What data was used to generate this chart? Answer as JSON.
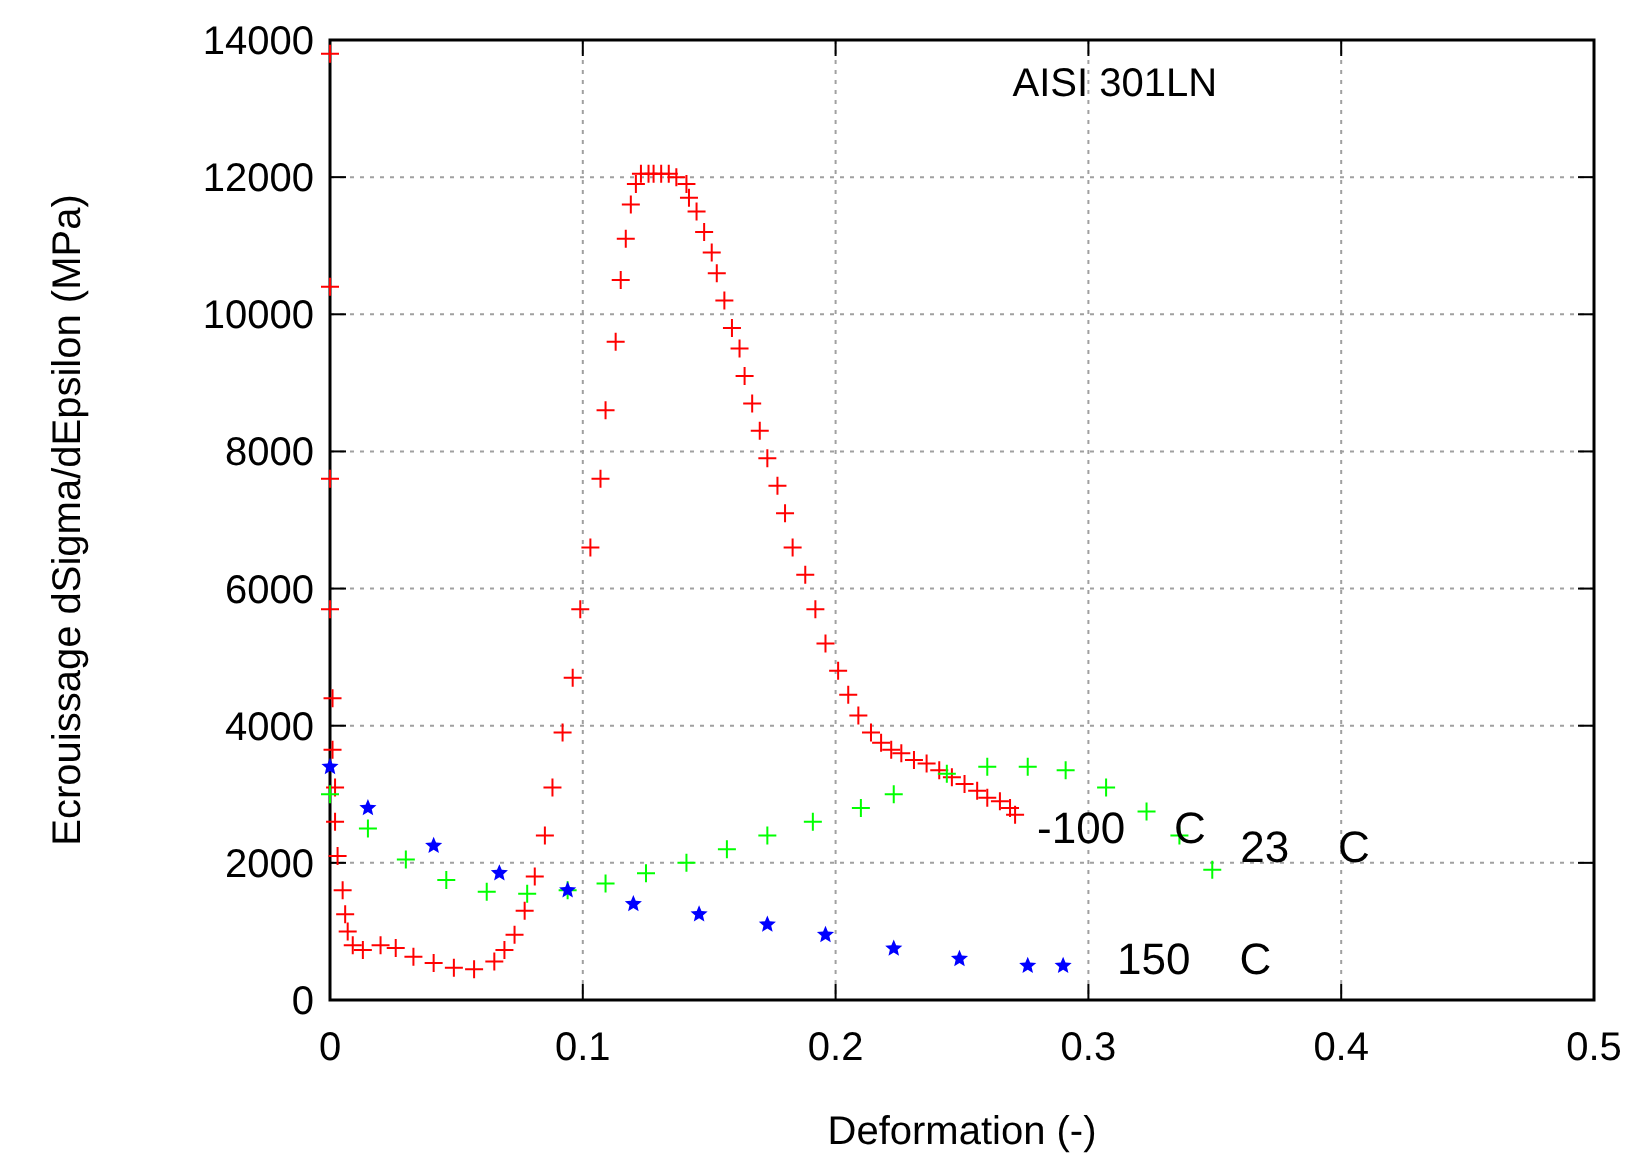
{
  "chart_data": {
    "type": "scatter",
    "title": "AISI 301LN",
    "xlabel": "Deformation (-)",
    "ylabel": "Ecrouissage dSigma/dEpsilon (MPa)",
    "xlim": [
      0,
      0.5
    ],
    "xticks": [
      0,
      0.1,
      0.2,
      0.3,
      0.4,
      0.5
    ],
    "ylim": [
      0,
      14000
    ],
    "yticks": [
      0,
      2000,
      4000,
      6000,
      8000,
      10000,
      12000,
      14000
    ],
    "grid": true,
    "series": [
      {
        "color": "#ff0000",
        "marker": "cross",
        "x": [
          0,
          0,
          0,
          0,
          0.001,
          0.001,
          0.002,
          0.002,
          0.003,
          0.005,
          0.006,
          0.007,
          0.009,
          0.013,
          0.02,
          0.026,
          0.033,
          0.041,
          0.049,
          0.057,
          0.065,
          0.069,
          0.073,
          0.077,
          0.081,
          0.085,
          0.088,
          0.092,
          0.096,
          0.099,
          0.103,
          0.107,
          0.109,
          0.113,
          0.115,
          0.117,
          0.119,
          0.121,
          0.123,
          0.126,
          0.128,
          0.131,
          0.134,
          0.137,
          0.141,
          0.142,
          0.145,
          0.148,
          0.151,
          0.153,
          0.156,
          0.159,
          0.162,
          0.164,
          0.167,
          0.17,
          0.173,
          0.177,
          0.18,
          0.183,
          0.188,
          0.192,
          0.196,
          0.201,
          0.205,
          0.209,
          0.214,
          0.218,
          0.222,
          0.226,
          0.231,
          0.236,
          0.241,
          0.246,
          0.251,
          0.256,
          0.26,
          0.265,
          0.269,
          0.271
        ],
        "values": [
          13800,
          10400,
          7600,
          5700,
          4400,
          3650,
          3100,
          2600,
          2100,
          1600,
          1250,
          1000,
          800,
          730,
          800,
          760,
          630,
          540,
          470,
          450,
          560,
          730,
          950,
          1300,
          1800,
          2400,
          3100,
          3900,
          4700,
          5700,
          6600,
          7600,
          8600,
          9600,
          10500,
          11100,
          11600,
          11900,
          12050,
          12050,
          12050,
          12050,
          12050,
          12000,
          11900,
          11700,
          11500,
          11200,
          10900,
          10600,
          10200,
          9800,
          9500,
          9100,
          8700,
          8300,
          7900,
          7500,
          7100,
          6600,
          6200,
          5700,
          5200,
          4800,
          4450,
          4150,
          3900,
          3750,
          3650,
          3600,
          3500,
          3450,
          3350,
          3250,
          3150,
          3050,
          2950,
          2900,
          2800,
          2700
        ]
      },
      {
        "color": "#00ff00",
        "marker": "cross",
        "x": [
          0,
          0.015,
          0.03,
          0.046,
          0.062,
          0.078,
          0.094,
          0.109,
          0.125,
          0.141,
          0.157,
          0.173,
          0.191,
          0.21,
          0.223,
          0.244,
          0.26,
          0.276,
          0.291,
          0.307,
          0.323,
          0.336,
          0.349
        ],
        "values": [
          3000,
          2500,
          2050,
          1750,
          1580,
          1550,
          1600,
          1700,
          1850,
          2000,
          2200,
          2400,
          2600,
          2800,
          3000,
          3300,
          3400,
          3400,
          3350,
          3100,
          2750,
          2400,
          1900
        ]
      },
      {
        "color": "#0000ff",
        "marker": "star",
        "x": [
          0,
          0.015,
          0.041,
          0.067,
          0.094,
          0.12,
          0.146,
          0.173,
          0.196,
          0.223,
          0.249,
          0.276,
          0.29
        ],
        "values": [
          3400,
          2800,
          2250,
          1850,
          1600,
          1400,
          1250,
          1100,
          950,
          750,
          600,
          500,
          500
        ]
      }
    ],
    "annotations": [
      "-100    C",
      "23    C",
      "150    C"
    ]
  }
}
